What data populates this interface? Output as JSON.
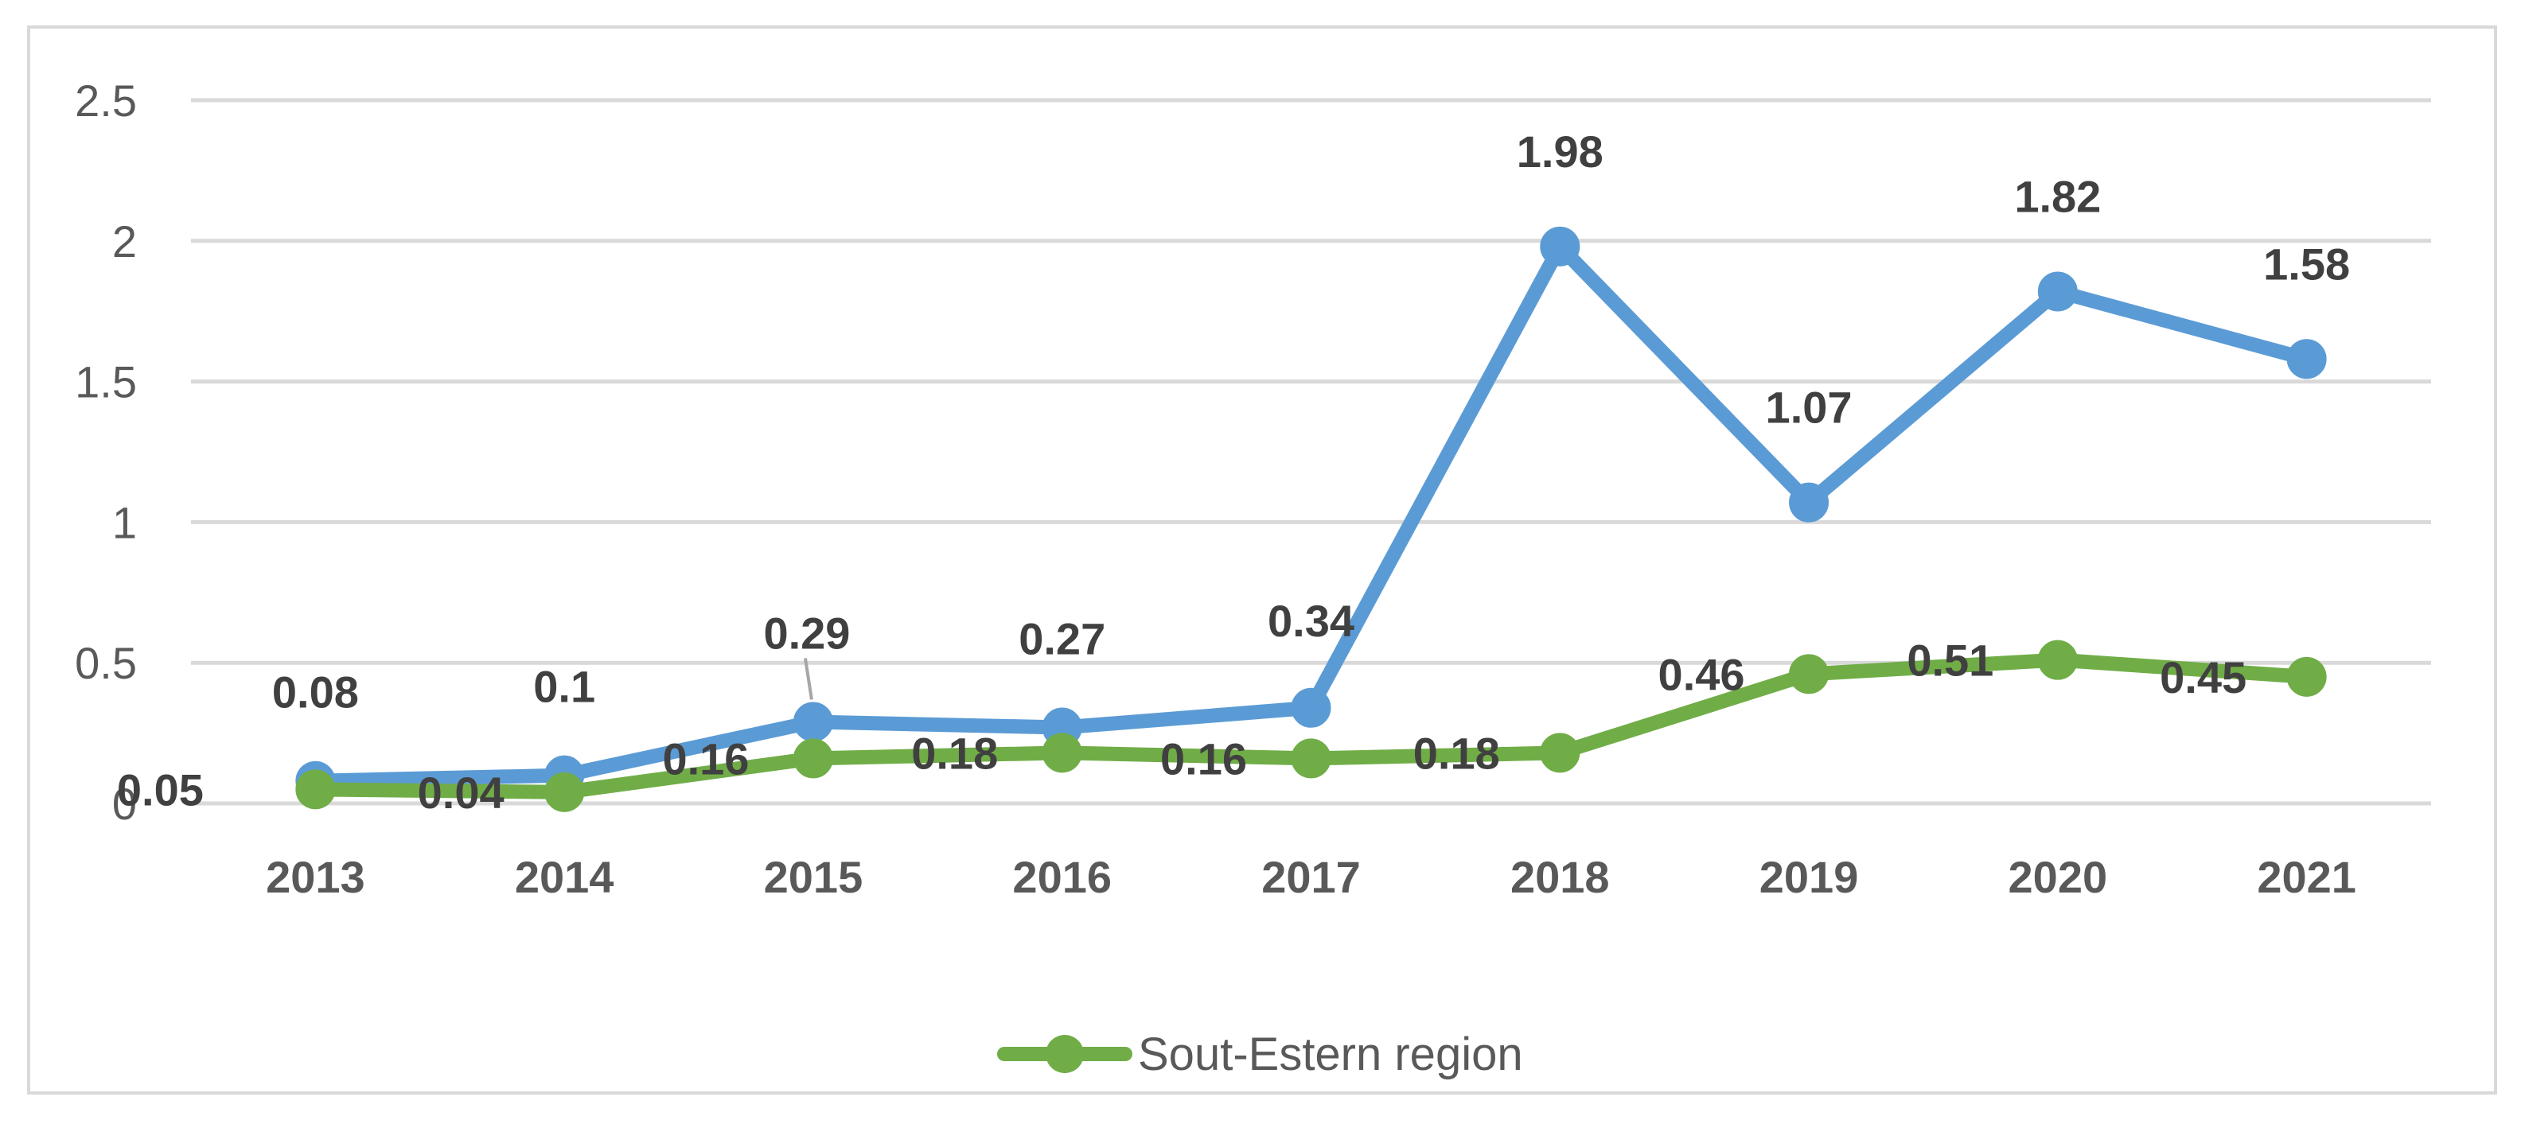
{
  "chart_data": {
    "type": "line",
    "title": "",
    "xlabel": "",
    "ylabel": "",
    "categories": [
      "2013",
      "2014",
      "2015",
      "2016",
      "2017",
      "2018",
      "2019",
      "2020",
      "2021"
    ],
    "ylim": [
      0,
      2.5
    ],
    "yticks": [
      0,
      0.5,
      1,
      1.5,
      2,
      2.5
    ],
    "ytick_labels": [
      "0",
      "0.5",
      "1",
      "1.5",
      "2",
      "2.5"
    ],
    "grid": true,
    "legend_position": "bottom-center",
    "series": [
      {
        "name": "",
        "color": "#5B9BD5",
        "in_legend": false,
        "values": [
          0.08,
          0.1,
          0.29,
          0.27,
          0.34,
          1.98,
          1.07,
          1.82,
          1.58
        ],
        "labels": [
          "0.08",
          "0.1",
          "0.29",
          "0.27",
          "0.34",
          "1.98",
          "1.07",
          "1.82",
          "1.58"
        ]
      },
      {
        "name": "Sout-Estern region",
        "color": "#70AD47",
        "in_legend": true,
        "values": [
          0.05,
          0.04,
          0.16,
          0.18,
          0.16,
          0.18,
          0.46,
          0.51,
          0.45
        ],
        "labels": [
          "0.05",
          "0.04",
          "0.16",
          "0.18",
          "0.16",
          "0.18",
          "0.46",
          "0.51",
          "0.45"
        ]
      }
    ],
    "colors": {
      "grid": "#D9D9D9",
      "axis_text": "#595959",
      "label_text": "#404040",
      "frame": "#D9D9D9"
    }
  }
}
